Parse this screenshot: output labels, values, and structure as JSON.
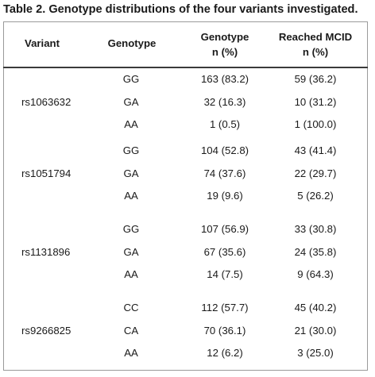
{
  "caption": "Table 2. Genotype distributions of the four variants investigated.",
  "headers": {
    "variant": "Variant",
    "genotype": "Genotype",
    "genotype_n_line1": "Genotype",
    "genotype_n_line2": "n (%)",
    "mcid_line1": "Reached MCID",
    "mcid_line2": "n (%)"
  },
  "groups": [
    {
      "variant": "rs1063632",
      "rows": [
        {
          "genotype": "GG",
          "n": "163 (83.2)",
          "mcid": "59 (36.2)"
        },
        {
          "genotype": "GA",
          "n": "32 (16.3)",
          "mcid": "10 (31.2)"
        },
        {
          "genotype": "AA",
          "n": "1 (0.5)",
          "mcid": "1 (100.0)"
        }
      ]
    },
    {
      "variant": "rs1051794",
      "rows": [
        {
          "genotype": "GG",
          "n": "104 (52.8)",
          "mcid": "43 (41.4)"
        },
        {
          "genotype": "GA",
          "n": "74 (37.6)",
          "mcid": "22 (29.7)"
        },
        {
          "genotype": "AA",
          "n": "19 (9.6)",
          "mcid": "5 (26.2)"
        }
      ]
    },
    {
      "variant": "rs1131896",
      "rows": [
        {
          "genotype": "GG",
          "n": "107 (56.9)",
          "mcid": "33 (30.8)"
        },
        {
          "genotype": "GA",
          "n": "67 (35.6)",
          "mcid": "24 (35.8)"
        },
        {
          "genotype": "AA",
          "n": "14 (7.5)",
          "mcid": "9 (64.3)"
        }
      ]
    },
    {
      "variant": "rs9266825",
      "rows": [
        {
          "genotype": "CC",
          "n": "112 (57.7)",
          "mcid": "45 (40.2)"
        },
        {
          "genotype": "CA",
          "n": "70 (36.1)",
          "mcid": "21 (30.0)"
        },
        {
          "genotype": "AA",
          "n": "12 (6.2)",
          "mcid": "3 (25.0)"
        }
      ]
    }
  ]
}
